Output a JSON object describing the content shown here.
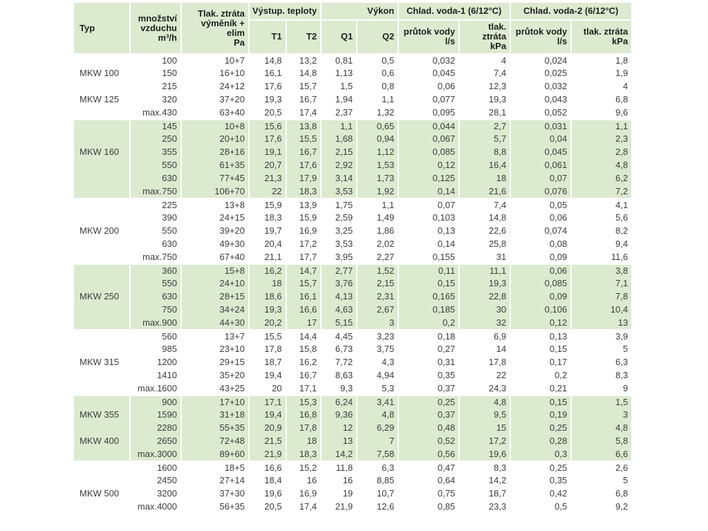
{
  "colors": {
    "band_green": "#dcead0",
    "text": "#3c3c3c",
    "header_text": "#1f1f1f",
    "page_background": "#ffffff"
  },
  "table": {
    "header": {
      "typ": "Typ",
      "mnozstvi": "množství\nvzduchu\nm³/h",
      "tlak_vymenik": "Tlak. ztráta\nvýměník + elim\nPa",
      "vystup_teploty": "Výstup. teploty",
      "vykon": "Výkon",
      "voda1": "Chlad. voda-1 (6/12°C)",
      "voda2": "Chlad. voda-2  (6/12°C)",
      "t1": "T1",
      "t2": "T2",
      "q1": "Q1",
      "q2": "Q2",
      "prutok_vody": "průtok vody\nl/s",
      "tlak_ztrata": "tlak. ztráta\nkPa"
    },
    "bands": [
      {
        "green": false,
        "rows": [
          {
            "typ": "",
            "values": [
              "100",
              "10+7",
              "14,8",
              "13,2",
              "0,81",
              "0,5",
              "0,032",
              "4",
              "0,024",
              "1,8"
            ]
          },
          {
            "typ": "MKW 100",
            "values": [
              "150",
              "16+10",
              "16,1",
              "14,8",
              "1,13",
              "0,6",
              "0,045",
              "7,4",
              "0,025",
              "1,9"
            ]
          },
          {
            "typ": "",
            "values": [
              "215",
              "24+12",
              "17,6",
              "15,7",
              "1,5",
              "0,8",
              "0,06",
              "12,3",
              "0,032",
              "4"
            ]
          },
          {
            "typ": "MKW 125",
            "values": [
              "320",
              "37+20",
              "19,3",
              "16,7",
              "1,94",
              "1,1",
              "0,077",
              "19,3",
              "0,043",
              "6,8"
            ]
          },
          {
            "typ": "",
            "values": [
              "max.430",
              "63+40",
              "20,5",
              "17,4",
              "2,37",
              "1,32",
              "0,095",
              "28,1",
              "0,052",
              "9,6"
            ]
          }
        ]
      },
      {
        "green": true,
        "rows": [
          {
            "typ": "",
            "values": [
              "145",
              "10+8",
              "15,6",
              "13,8",
              "1,1",
              "0,65",
              "0,044",
              "2,7",
              "0,031",
              "1,1"
            ]
          },
          {
            "typ": "",
            "values": [
              "250",
              "20+10",
              "17,6",
              "15,5",
              "1,68",
              "0,94",
              "0,067",
              "5,7",
              "0,04",
              "2,3"
            ]
          },
          {
            "typ": "MKW 160",
            "values": [
              "355",
              "28+16",
              "19,1",
              "16,7",
              "2,15",
              "1,12",
              "0,085",
              "8,8",
              "0,045",
              "2,8"
            ]
          },
          {
            "typ": "",
            "values": [
              "550",
              "61+35",
              "20,7",
              "17,6",
              "2,92",
              "1,53",
              "0,12",
              "16,4",
              "0,061",
              "4,8"
            ]
          },
          {
            "typ": "",
            "values": [
              "630",
              "77+45",
              "21,3",
              "17,9",
              "3,14",
              "1,73",
              "0,125",
              "18",
              "0,07",
              "6,2"
            ]
          },
          {
            "typ": "",
            "values": [
              "max.750",
              "106+70",
              "22",
              "18,3",
              "3,53",
              "1,92",
              "0,14",
              "21,6",
              "0,076",
              "7,2"
            ]
          }
        ]
      },
      {
        "green": false,
        "rows": [
          {
            "typ": "",
            "values": [
              "225",
              "13+8",
              "15,9",
              "13,9",
              "1,75",
              "1,1",
              "0,07",
              "7,4",
              "0,05",
              "4,1"
            ]
          },
          {
            "typ": "",
            "values": [
              "390",
              "24+15",
              "18,3",
              "15,9",
              "2,59",
              "1,49",
              "0,103",
              "14,8",
              "0,06",
              "5,6"
            ]
          },
          {
            "typ": "MKW 200",
            "values": [
              "550",
              "39+20",
              "19,7",
              "16,9",
              "3,25",
              "1,86",
              "0,13",
              "22,6",
              "0,074",
              "8,2"
            ]
          },
          {
            "typ": "",
            "values": [
              "630",
              "49+30",
              "20,4",
              "17,2",
              "3,53",
              "2,02",
              "0,14",
              "25,8",
              "0,08",
              "9,4"
            ]
          },
          {
            "typ": "",
            "values": [
              "max.750",
              "67+40",
              "21,1",
              "17,7",
              "3,95",
              "2,27",
              "0,155",
              "31",
              "0,09",
              "11,6"
            ]
          }
        ]
      },
      {
        "green": true,
        "rows": [
          {
            "typ": "",
            "values": [
              "360",
              "15+8",
              "16,2",
              "14,7",
              "2,77",
              "1,52",
              "0,11",
              "11,1",
              "0,06",
              "3,8"
            ]
          },
          {
            "typ": "",
            "values": [
              "550",
              "24+10",
              "18",
              "15,7",
              "3,76",
              "2,15",
              "0,15",
              "19,3",
              "0,085",
              "7,1"
            ]
          },
          {
            "typ": "MKW 250",
            "values": [
              "630",
              "28+15",
              "18,6",
              "16,1",
              "4,13",
              "2,31",
              "0,165",
              "22,8",
              "0,09",
              "7,8"
            ]
          },
          {
            "typ": "",
            "values": [
              "750",
              "34+24",
              "19,3",
              "16,6",
              "4,63",
              "2,67",
              "0,185",
              "30",
              "0,106",
              "10,4"
            ]
          },
          {
            "typ": "",
            "values": [
              "max.900",
              "44+30",
              "20,2",
              "17",
              "5,15",
              "3",
              "0,2",
              "32",
              "0,12",
              "13"
            ]
          }
        ]
      },
      {
        "green": false,
        "rows": [
          {
            "typ": "",
            "values": [
              "560",
              "13+7",
              "15,5",
              "14,4",
              "4,45",
              "3,23",
              "0,18",
              "6,9",
              "0,13",
              "3,9"
            ]
          },
          {
            "typ": "",
            "values": [
              "985",
              "23+10",
              "17,8",
              "15,8",
              "6,73",
              "3,75",
              "0,27",
              "14",
              "0,15",
              "5"
            ]
          },
          {
            "typ": "MKW 315",
            "values": [
              "1200",
              "29+15",
              "18,7",
              "16,2",
              "7,72",
              "4,3",
              "0,31",
              "17,8",
              "0,17",
              "6,3"
            ]
          },
          {
            "typ": "",
            "values": [
              "1410",
              "35+20",
              "19,4",
              "16,7",
              "8,63",
              "4,94",
              "0,35",
              "22",
              "0,2",
              "8,3"
            ]
          },
          {
            "typ": "",
            "values": [
              "max.1600",
              "43+25",
              "20",
              "17,1",
              "9,3",
              "5,3",
              "0,37",
              "24,3",
              "0,21",
              "9"
            ]
          }
        ]
      },
      {
        "green": true,
        "rows": [
          {
            "typ": "",
            "values": [
              "900",
              "17+10",
              "17,1",
              "15,3",
              "6,24",
              "3,41",
              "0,25",
              "4,8",
              "0,15",
              "1,5"
            ]
          },
          {
            "typ": "MKW 355",
            "values": [
              "1590",
              "31+18",
              "19,4",
              "16,8",
              "9,36",
              "4,8",
              "0,37",
              "9,5",
              "0,19",
              "3"
            ]
          },
          {
            "typ": "",
            "values": [
              "2280",
              "55+35",
              "20,9",
              "17,8",
              "12",
              "6,29",
              "0,48",
              "15",
              "0,25",
              "4,8"
            ]
          },
          {
            "typ": "MKW 400",
            "values": [
              "2650",
              "72+48",
              "21,5",
              "18",
              "13",
              "7",
              "0,52",
              "17,2",
              "0,28",
              "5,8"
            ]
          },
          {
            "typ": "",
            "values": [
              "max.3000",
              "89+60",
              "21,9",
              "18,3",
              "14,2",
              "7,58",
              "0,56",
              "19,6",
              "0,3",
              "6,6"
            ]
          }
        ]
      },
      {
        "green": false,
        "rows": [
          {
            "typ": "",
            "values": [
              "1600",
              "18+5",
              "16,6",
              "15,2",
              "11,8",
              "6,3",
              "0,47",
              "8,3",
              "0,25",
              "2,6"
            ]
          },
          {
            "typ": "",
            "values": [
              "2450",
              "27+14",
              "18,4",
              "16",
              "16",
              "8,85",
              "0,64",
              "14,2",
              "0,35",
              "5"
            ]
          },
          {
            "typ": "MKW 500",
            "values": [
              "3200",
              "37+30",
              "19,6",
              "16,9",
              "19",
              "10,7",
              "0,75",
              "18,7",
              "0,42",
              "6,8"
            ]
          },
          {
            "typ": "",
            "values": [
              "max.4000",
              "56+35",
              "20,5",
              "17,4",
              "21,9",
              "12,6",
              "0,85",
              "23,3",
              "0,5",
              "9,2"
            ]
          }
        ]
      }
    ]
  }
}
